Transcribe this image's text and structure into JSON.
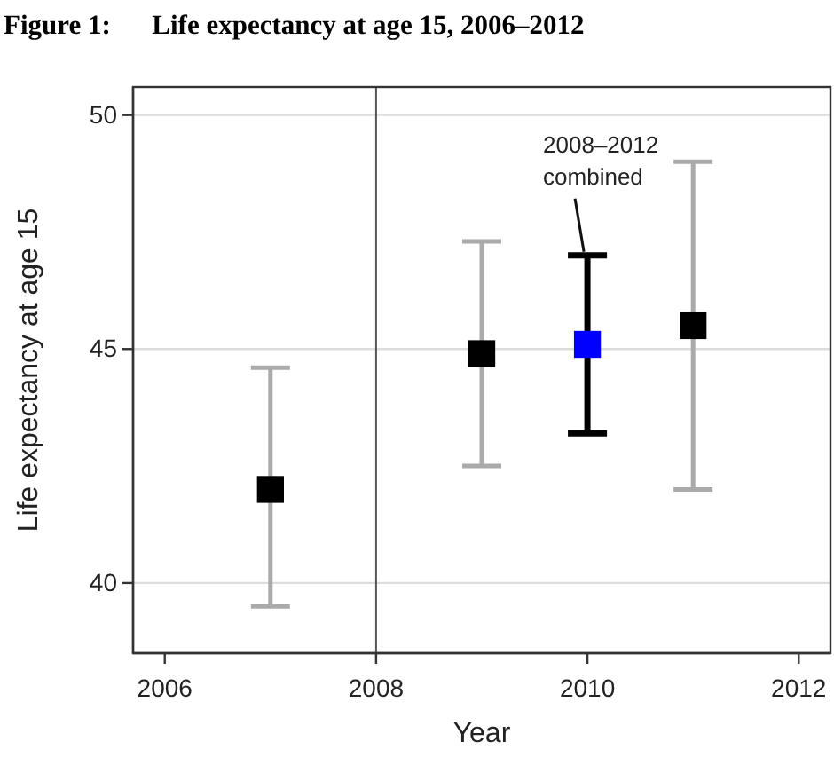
{
  "chart_data": {
    "type": "scatter",
    "title": "Figure 1:      Life expectancy at age 15, 2006–2012",
    "xlabel": "Year",
    "ylabel": "Life expectancy at age 15",
    "series": [
      {
        "color": "#000000",
        "x": [
          2007,
          2009,
          2011
        ],
        "values": [
          42.0,
          44.9,
          45.5
        ],
        "errors": [
          [
            39.5,
            44.6
          ],
          [
            42.5,
            47.3
          ],
          [
            42.0,
            49.0
          ]
        ]
      },
      {
        "color": "#0000ff",
        "x": [
          2010
        ],
        "values": [
          45.1
        ],
        "errors": [
          [
            43.2,
            47.0
          ]
        ]
      }
    ],
    "xlim": [
      2005.7,
      2012.3
    ],
    "xticks": [
      2006,
      2008,
      2010,
      2012
    ],
    "ylim": [
      38.5,
      50.6
    ],
    "yticks": [
      40,
      45,
      50
    ],
    "grid": "y",
    "marker": "square",
    "ref_lines": [
      {
        "axis": "x",
        "value": 2008,
        "color": "#555555"
      }
    ],
    "annotations": [
      {
        "text": "2008–2012\ncombined",
        "x": 2010,
        "y": 47.0
      }
    ]
  }
}
